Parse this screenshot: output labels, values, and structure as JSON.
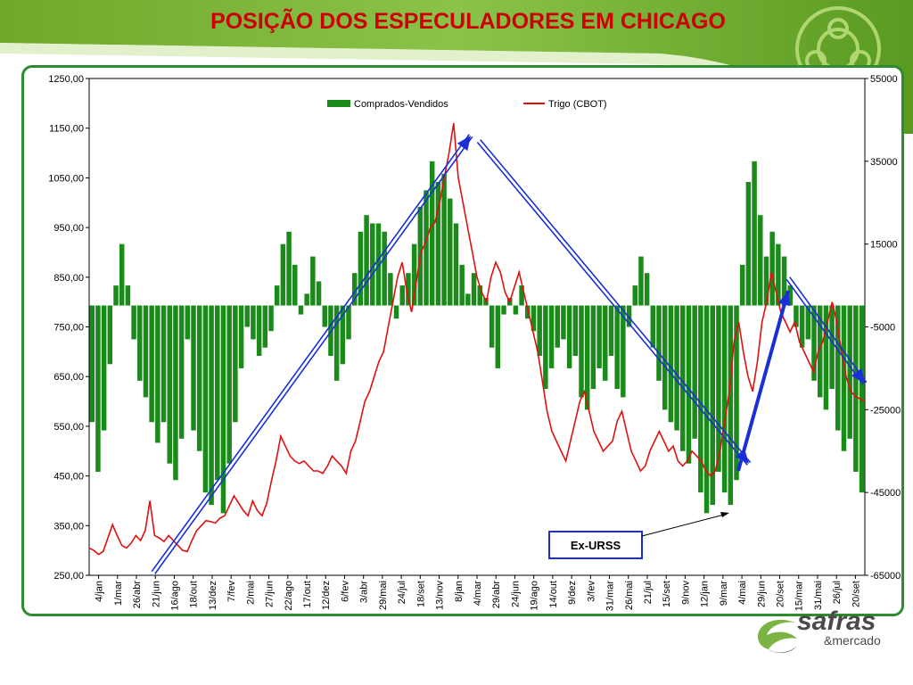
{
  "title": "POSIÇÃO DOS ESPECULADORES EM CHICAGO",
  "colors": {
    "bar": "#1a8a1a",
    "line": "#e01010",
    "trend_arrow": "#1a2fd6",
    "frame": "#2e8b2e",
    "title": "#cc0000"
  },
  "logo": {
    "main": "safras",
    "sub": "&mercado",
    "icon": "safras-logo-icon"
  },
  "chart_data": {
    "type": "bar",
    "legend": {
      "position": "top-center",
      "items": [
        {
          "label": "Comprados-Vendidos",
          "type": "bar",
          "color": "#1a8a1a"
        },
        {
          "label": "Trigo (CBOT)",
          "type": "line",
          "color": "#e01010"
        }
      ]
    },
    "left_axis": {
      "range": [
        250,
        1250
      ],
      "ticks": [
        "1250,00",
        "1150,00",
        "1050,00",
        "950,00",
        "850,00",
        "750,00",
        "650,00",
        "550,00",
        "450,00",
        "350,00",
        "250,00"
      ]
    },
    "right_axis": {
      "range": [
        -65000,
        55000
      ],
      "ticks": [
        "55000",
        "35000",
        "15000",
        "-5000",
        "-25000",
        "-45000",
        "-65000"
      ]
    },
    "x_ticks": [
      "4/jan",
      "1/mar",
      "26/abr",
      "21/jun",
      "16/ago",
      "18/out",
      "13/dez",
      "7/fev",
      "2/mai",
      "27/jun",
      "22/ago",
      "17/out",
      "12/dez",
      "6/fev",
      "3/abr",
      "29/mai",
      "24/jul",
      "18/set",
      "13/nov",
      "8/jan",
      "4/mar",
      "29/abr",
      "24/jun",
      "19/ago",
      "14/out",
      "9/dez",
      "3/fev",
      "31/mar",
      "26/mai",
      "21/jul",
      "15/set",
      "9/nov",
      "12/jan",
      "9/mar",
      "4/mai",
      "29/jun",
      "20/set",
      "15/mar",
      "31/mai",
      "26/jul",
      "20/set"
    ],
    "series": [
      {
        "name": "Comprados-Vendidos",
        "axis": "right",
        "type": "bar",
        "values": [
          -28000,
          -40000,
          -30000,
          -14000,
          5000,
          15000,
          5000,
          -8000,
          -18000,
          -22000,
          -28000,
          -33000,
          -28000,
          -38000,
          -42000,
          -32000,
          -8000,
          -30000,
          -35000,
          -45000,
          -48000,
          -42000,
          -50000,
          -38000,
          -28000,
          -15000,
          -5000,
          -8000,
          -12000,
          -10000,
          -6000,
          5000,
          15000,
          18000,
          10000,
          -2000,
          3000,
          12000,
          6000,
          -5000,
          -12000,
          -18000,
          -14000,
          -8000,
          8000,
          18000,
          22000,
          20000,
          20000,
          18000,
          8000,
          -3000,
          5000,
          8000,
          15000,
          24000,
          28000,
          35000,
          30000,
          32000,
          26000,
          20000,
          10000,
          3000,
          8000,
          5000,
          2000,
          -10000,
          -15000,
          -2000,
          2000,
          -2000,
          5000,
          -3000,
          -6000,
          -12000,
          -20000,
          -15000,
          -10000,
          -8000,
          -15000,
          -12000,
          -22000,
          -25000,
          -20000,
          -15000,
          -18000,
          -12000,
          -20000,
          -22000,
          -5000,
          5000,
          12000,
          8000,
          -10000,
          -18000,
          -25000,
          -28000,
          -30000,
          -35000,
          -38000,
          -32000,
          -45000,
          -50000,
          -48000,
          -40000,
          -45000,
          -48000,
          -42000,
          10000,
          30000,
          35000,
          22000,
          12000,
          18000,
          15000,
          12000,
          5000,
          -5000,
          -10000,
          -8000,
          -18000,
          -22000,
          -25000,
          -20000,
          -30000,
          -35000,
          -32000,
          -40000,
          -45000
        ],
        "bar_count_note": "see x_ticks"
      },
      {
        "name": "Trigo (CBOT)",
        "axis": "left",
        "type": "line",
        "values": [
          305,
          300,
          292,
          298,
          325,
          352,
          330,
          310,
          305,
          315,
          330,
          320,
          340,
          400,
          330,
          325,
          318,
          330,
          320,
          310,
          300,
          298,
          320,
          340,
          350,
          360,
          358,
          355,
          365,
          370,
          390,
          410,
          395,
          380,
          370,
          400,
          380,
          370,
          395,
          440,
          480,
          530,
          510,
          490,
          480,
          475,
          480,
          470,
          460,
          460,
          455,
          470,
          490,
          480,
          470,
          455,
          500,
          520,
          560,
          600,
          620,
          650,
          680,
          700,
          750,
          800,
          850,
          880,
          820,
          780,
          840,
          900,
          920,
          950,
          960,
          1000,
          1050,
          1100,
          1160,
          1050,
          1000,
          950,
          900,
          850,
          820,
          800,
          850,
          880,
          860,
          820,
          800,
          830,
          860,
          820,
          780,
          740,
          700,
          640,
          580,
          540,
          520,
          500,
          480,
          520,
          560,
          600,
          620,
          580,
          540,
          520,
          500,
          510,
          520,
          560,
          580,
          540,
          500,
          480,
          460,
          470,
          500,
          520,
          540,
          520,
          500,
          510,
          480,
          470,
          480,
          500,
          490,
          480,
          460,
          450,
          460,
          500,
          560,
          620,
          720,
          760,
          700,
          650,
          620,
          680,
          760,
          800,
          860,
          820,
          780,
          760,
          740,
          760,
          720,
          700,
          680,
          660,
          700,
          720,
          760,
          800,
          760,
          700,
          650,
          620,
          610,
          605,
          600
        ]
      }
    ],
    "trend_arrows": [
      {
        "from": [
          "21/jun",
          255
        ],
        "to": [
          "4/mar",
          1150
        ]
      },
      {
        "from": [
          "4/mar",
          1140
        ],
        "to": [
          "4/mai",
          460
        ]
      },
      {
        "from": [
          "4/mai",
          460
        ],
        "to": [
          "20/set",
          800
        ]
      },
      {
        "from": [
          "20/set",
          810
        ],
        "to": [
          "20/set",
          630
        ]
      }
    ],
    "annotation": {
      "text": "Ex-URSS",
      "points_to": "4/mai"
    }
  }
}
